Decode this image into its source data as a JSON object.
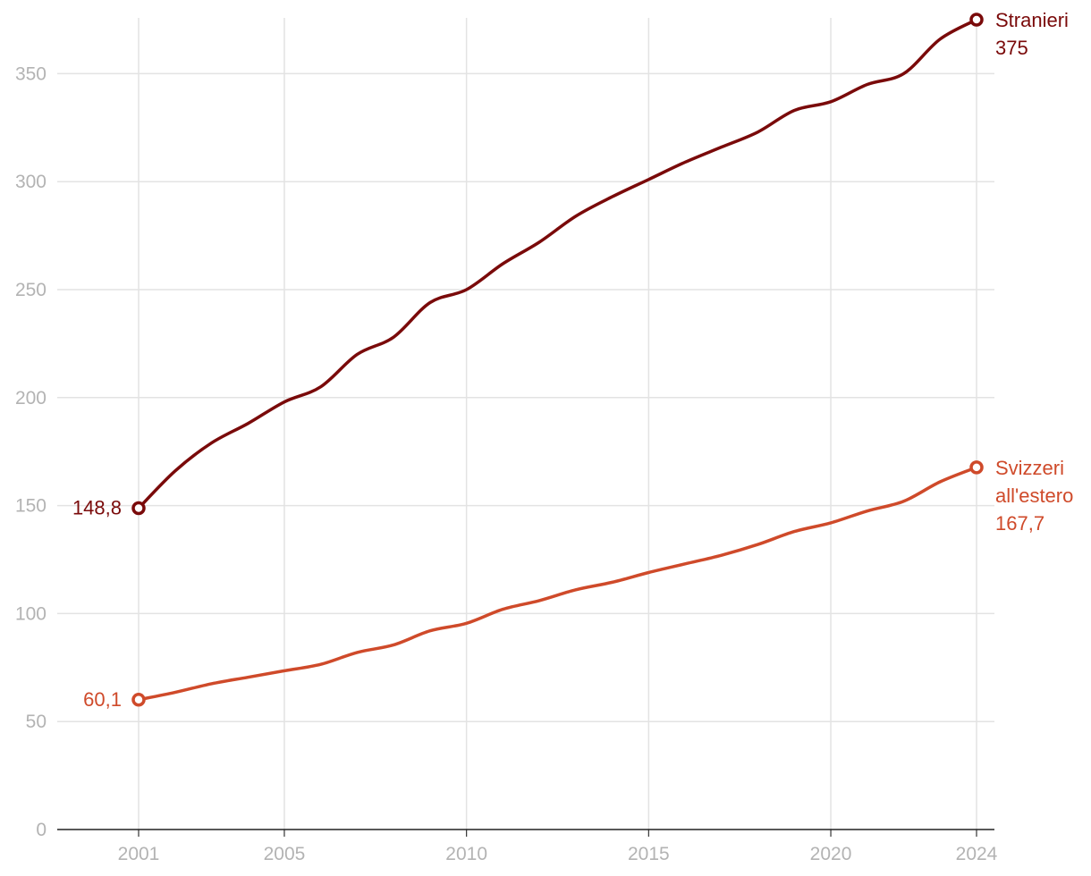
{
  "chart_data": {
    "type": "line",
    "x": [
      2001,
      2002,
      2003,
      2004,
      2005,
      2006,
      2007,
      2008,
      2009,
      2010,
      2011,
      2012,
      2013,
      2014,
      2015,
      2016,
      2017,
      2018,
      2019,
      2020,
      2021,
      2022,
      2023,
      2024
    ],
    "x_ticks": [
      "2001",
      "2005",
      "2010",
      "2015",
      "2020",
      "2024"
    ],
    "y_ticks": [
      "0",
      "50",
      "100",
      "150",
      "200",
      "250",
      "300",
      "350"
    ],
    "ylim": [
      0,
      375
    ],
    "xlim": [
      1998.8,
      2024.5
    ],
    "grid": true,
    "series": [
      {
        "name": "Stranieri",
        "label_lines": [
          "Stranieri"
        ],
        "color": "#7a0a0a",
        "start_label": "148,8",
        "end_label": "375",
        "values": [
          148.8,
          166,
          179,
          188,
          198,
          205,
          220,
          228,
          244,
          250,
          262,
          272,
          284,
          293,
          301,
          309,
          316,
          323,
          333,
          337,
          345,
          350,
          366,
          375
        ]
      },
      {
        "name": "Svizzeri all'estero",
        "label_lines": [
          "Svizzeri",
          "all'estero"
        ],
        "color": "#cf4a2a",
        "start_label": "60,1",
        "end_label": "167,7",
        "values": [
          60.1,
          63.5,
          67.5,
          70.5,
          73.5,
          76.5,
          82,
          85.5,
          92,
          95.5,
          102,
          106,
          111,
          114.5,
          119,
          123,
          127,
          132,
          138,
          142,
          147.5,
          152,
          161,
          167.7
        ]
      }
    ]
  }
}
